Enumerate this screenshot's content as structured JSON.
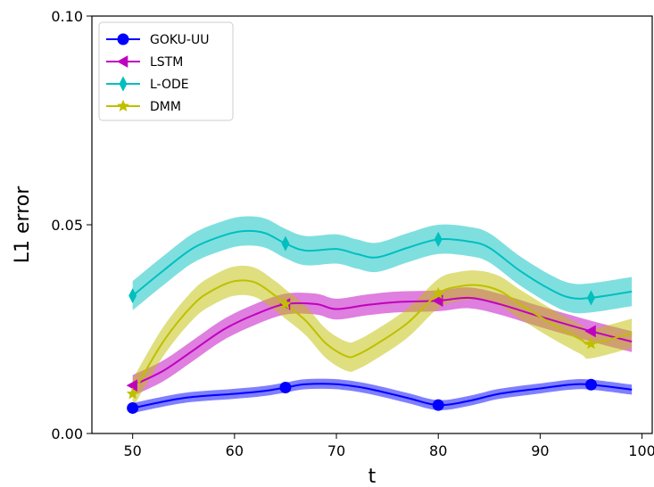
{
  "chart_data": {
    "type": "line",
    "title": "",
    "xlabel": "t",
    "ylabel": "L1 error",
    "xlim": [
      46,
      101
    ],
    "ylim": [
      0.0,
      0.1
    ],
    "xticks": [
      50,
      60,
      70,
      80,
      90,
      100
    ],
    "yticks": [
      0.0,
      0.05,
      0.1
    ],
    "ytick_labels": [
      "0.00",
      "0.05",
      "0.10"
    ],
    "grid": false,
    "legend_position": "top-left",
    "series": [
      {
        "name": "GOKU-UU",
        "color": "#0000ff",
        "marker": "circle",
        "markers_at": [
          50,
          65,
          80,
          95
        ],
        "x": [
          50,
          55,
          60,
          63,
          65,
          67,
          70,
          73,
          77,
          80,
          83,
          86,
          90,
          93,
          95,
          99
        ],
        "y": [
          0.0061,
          0.0085,
          0.0095,
          0.0102,
          0.011,
          0.0118,
          0.0118,
          0.0108,
          0.0085,
          0.0068,
          0.0078,
          0.0095,
          0.0108,
          0.0117,
          0.0117,
          0.0105
        ],
        "band": 0.0012
      },
      {
        "name": "LSTM",
        "color": "#bf00bf",
        "marker": "triangle-left",
        "markers_at": [
          50,
          65,
          80,
          95
        ],
        "x": [
          50,
          53,
          56,
          59,
          62,
          65,
          68,
          70,
          73,
          76,
          80,
          83,
          86,
          90,
          95,
          99
        ],
        "y": [
          0.0115,
          0.015,
          0.02,
          0.025,
          0.0285,
          0.031,
          0.031,
          0.0298,
          0.0308,
          0.0315,
          0.0318,
          0.0325,
          0.031,
          0.028,
          0.0245,
          0.022
        ],
        "band": 0.0025
      },
      {
        "name": "L-ODE",
        "color": "#00bfbf",
        "marker": "diamond",
        "markers_at": [
          50,
          65,
          80,
          95
        ],
        "x": [
          50,
          53,
          56,
          59,
          61,
          63,
          65,
          67,
          70,
          72,
          74,
          77,
          80,
          83,
          85,
          88,
          91,
          93,
          95,
          99
        ],
        "y": [
          0.033,
          0.039,
          0.0445,
          0.0475,
          0.0485,
          0.048,
          0.0455,
          0.0438,
          0.0442,
          0.043,
          0.0422,
          0.0445,
          0.0465,
          0.046,
          0.0445,
          0.039,
          0.0345,
          0.0325,
          0.0325,
          0.034
        ],
        "band": 0.0035
      },
      {
        "name": "DMM",
        "color": "#bfbf00",
        "marker": "star",
        "markers_at": [
          50,
          65,
          80,
          95
        ],
        "x": [
          50,
          53,
          56,
          58,
          60,
          62,
          64,
          65,
          67,
          69,
          71,
          72,
          74,
          77,
          80,
          82,
          84,
          86,
          88,
          91,
          94,
          95,
          99
        ],
        "y": [
          0.0095,
          0.022,
          0.031,
          0.0345,
          0.0365,
          0.0362,
          0.033,
          0.031,
          0.027,
          0.0215,
          0.0185,
          0.0188,
          0.0215,
          0.0265,
          0.0335,
          0.0352,
          0.0355,
          0.0342,
          0.031,
          0.0265,
          0.0225,
          0.0215,
          0.024
        ],
        "band": 0.0035
      }
    ]
  }
}
